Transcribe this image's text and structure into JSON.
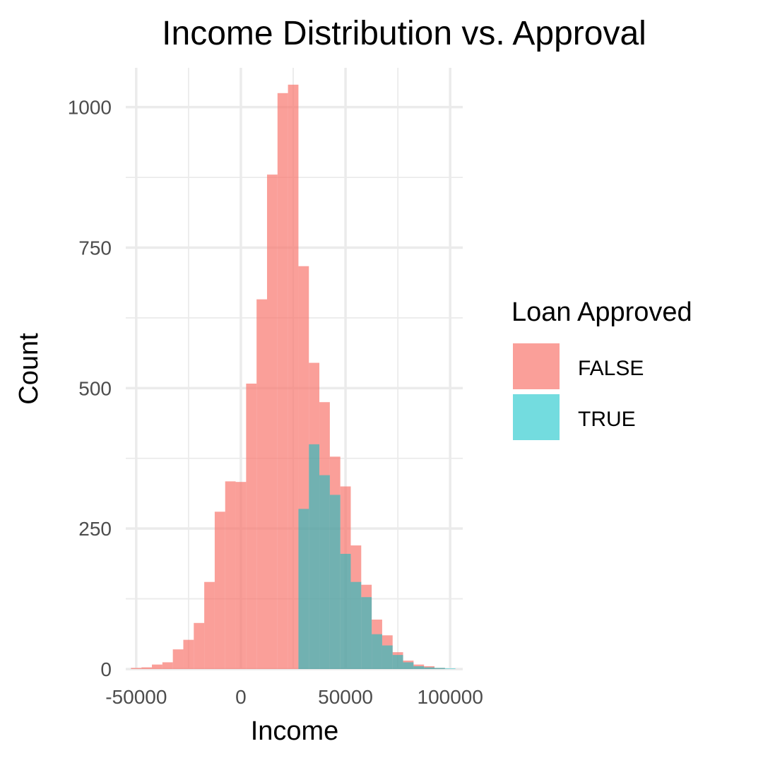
{
  "chart_data": {
    "type": "histogram",
    "title": "Income Distribution vs. Approval",
    "xlabel": "Income",
    "ylabel": "Count",
    "xlim": [
      -55000,
      106000
    ],
    "ylim": [
      0,
      1070
    ],
    "x_ticks": [
      -50000,
      0,
      50000,
      100000
    ],
    "x_tick_labels": [
      "-50000",
      "0",
      "50000",
      "100000"
    ],
    "y_ticks": [
      0,
      250,
      500,
      750,
      1000
    ],
    "y_tick_labels": [
      "0",
      "250",
      "500",
      "750",
      "1000"
    ],
    "grid": true,
    "bin_width": 5000,
    "legend": {
      "title": "Loan Approved",
      "position": "right",
      "entries": [
        "FALSE",
        "TRUE"
      ]
    },
    "series": [
      {
        "name": "FALSE",
        "color": "#F8766D",
        "opacity": 0.7,
        "bins": [
          {
            "x0": -52500,
            "x1": -47500,
            "count": 2
          },
          {
            "x0": -47500,
            "x1": -42500,
            "count": 3
          },
          {
            "x0": -42500,
            "x1": -37500,
            "count": 8
          },
          {
            "x0": -37500,
            "x1": -32500,
            "count": 12
          },
          {
            "x0": -32500,
            "x1": -27500,
            "count": 35
          },
          {
            "x0": -27500,
            "x1": -22500,
            "count": 52
          },
          {
            "x0": -22500,
            "x1": -17500,
            "count": 82
          },
          {
            "x0": -17500,
            "x1": -12500,
            "count": 155
          },
          {
            "x0": -12500,
            "x1": -7500,
            "count": 280
          },
          {
            "x0": -7500,
            "x1": -2500,
            "count": 334
          },
          {
            "x0": -2500,
            "x1": 2500,
            "count": 333
          },
          {
            "x0": 2500,
            "x1": 7500,
            "count": 508
          },
          {
            "x0": 7500,
            "x1": 12500,
            "count": 658
          },
          {
            "x0": 12500,
            "x1": 17500,
            "count": 880
          },
          {
            "x0": 17500,
            "x1": 22500,
            "count": 1025
          },
          {
            "x0": 22500,
            "x1": 27500,
            "count": 1040
          },
          {
            "x0": 27500,
            "x1": 32500,
            "count": 717
          },
          {
            "x0": 32500,
            "x1": 37500,
            "count": 545
          },
          {
            "x0": 37500,
            "x1": 42500,
            "count": 475
          },
          {
            "x0": 42500,
            "x1": 47500,
            "count": 378
          },
          {
            "x0": 47500,
            "x1": 52500,
            "count": 325
          },
          {
            "x0": 52500,
            "x1": 57500,
            "count": 220
          },
          {
            "x0": 57500,
            "x1": 62500,
            "count": 150
          },
          {
            "x0": 62500,
            "x1": 67500,
            "count": 88
          },
          {
            "x0": 67500,
            "x1": 72500,
            "count": 60
          },
          {
            "x0": 72500,
            "x1": 77500,
            "count": 30
          },
          {
            "x0": 77500,
            "x1": 82500,
            "count": 15
          },
          {
            "x0": 82500,
            "x1": 87500,
            "count": 8
          },
          {
            "x0": 87500,
            "x1": 92500,
            "count": 5
          },
          {
            "x0": 92500,
            "x1": 97500,
            "count": 2
          }
        ]
      },
      {
        "name": "TRUE",
        "color": "#00BFC4",
        "opacity": 0.55,
        "bins": [
          {
            "x0": 27500,
            "x1": 32500,
            "count": 285
          },
          {
            "x0": 32500,
            "x1": 37500,
            "count": 400
          },
          {
            "x0": 37500,
            "x1": 42500,
            "count": 345
          },
          {
            "x0": 42500,
            "x1": 47500,
            "count": 310
          },
          {
            "x0": 47500,
            "x1": 52500,
            "count": 205
          },
          {
            "x0": 52500,
            "x1": 57500,
            "count": 155
          },
          {
            "x0": 57500,
            "x1": 62500,
            "count": 128
          },
          {
            "x0": 62500,
            "x1": 67500,
            "count": 62
          },
          {
            "x0": 67500,
            "x1": 72500,
            "count": 42
          },
          {
            "x0": 72500,
            "x1": 77500,
            "count": 25
          },
          {
            "x0": 77500,
            "x1": 82500,
            "count": 12
          },
          {
            "x0": 82500,
            "x1": 87500,
            "count": 5
          },
          {
            "x0": 87500,
            "x1": 92500,
            "count": 3
          },
          {
            "x0": 92500,
            "x1": 97500,
            "count": 2
          },
          {
            "x0": 97500,
            "x1": 102500,
            "count": 1
          }
        ]
      }
    ]
  }
}
